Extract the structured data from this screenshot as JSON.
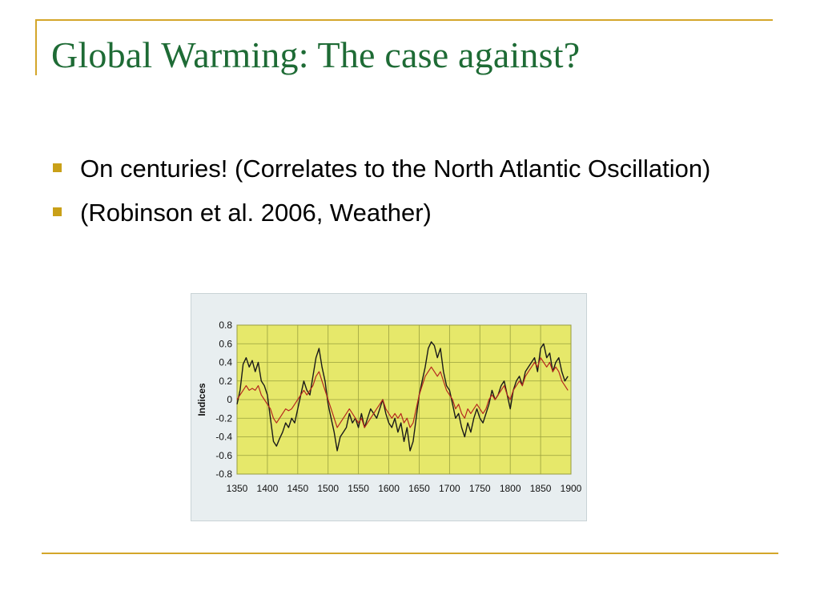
{
  "slide": {
    "title": "Global Warming: The case against?",
    "bullets": [
      "On centuries! (Correlates to the North Atlantic Oscillation)",
      "(Robinson et al. 2006, Weather)"
    ]
  },
  "colors": {
    "title": "#1e6b35",
    "frame": "#d4a62a",
    "bullet_marker": "#c9a018",
    "plot_background": "#e6e86a",
    "series_black": "#1a1a1a",
    "series_red": "#b5281f"
  },
  "chart_data": {
    "type": "line",
    "title": "",
    "xlabel": "",
    "ylabel": "Indices",
    "xlim": [
      1350,
      1900
    ],
    "ylim": [
      -0.8,
      0.8
    ],
    "xticks": [
      1350,
      1400,
      1450,
      1500,
      1550,
      1600,
      1650,
      1700,
      1750,
      1800,
      1850,
      1900
    ],
    "yticks": [
      0.8,
      0.6,
      0.4,
      0.2,
      0,
      -0.2,
      -0.4,
      -0.6,
      -0.8
    ],
    "ytick_labels": [
      "0.8",
      "0.6",
      "0.4",
      "0.2",
      "0",
      "-0.2",
      "-0.4",
      "-0.6",
      "-0.8"
    ],
    "grid": true,
    "series": [
      {
        "color": "#1a1a1a",
        "x": [
          1350,
          1355,
          1360,
          1365,
          1370,
          1375,
          1380,
          1385,
          1390,
          1395,
          1400,
          1405,
          1410,
          1415,
          1420,
          1425,
          1430,
          1435,
          1440,
          1445,
          1450,
          1455,
          1460,
          1465,
          1470,
          1475,
          1480,
          1485,
          1490,
          1495,
          1500,
          1505,
          1510,
          1515,
          1520,
          1525,
          1530,
          1535,
          1540,
          1545,
          1550,
          1555,
          1560,
          1565,
          1570,
          1575,
          1580,
          1585,
          1590,
          1595,
          1600,
          1605,
          1610,
          1615,
          1620,
          1625,
          1630,
          1635,
          1640,
          1645,
          1650,
          1655,
          1660,
          1665,
          1670,
          1675,
          1680,
          1685,
          1690,
          1695,
          1700,
          1705,
          1710,
          1715,
          1720,
          1725,
          1730,
          1735,
          1740,
          1745,
          1750,
          1755,
          1760,
          1765,
          1770,
          1775,
          1780,
          1785,
          1790,
          1795,
          1800,
          1805,
          1810,
          1815,
          1820,
          1825,
          1830,
          1835,
          1840,
          1845,
          1850,
          1855,
          1860,
          1865,
          1870,
          1875,
          1880,
          1885,
          1890,
          1895
        ],
        "y": [
          -0.05,
          0.1,
          0.38,
          0.45,
          0.35,
          0.42,
          0.3,
          0.4,
          0.2,
          0.15,
          0.05,
          -0.2,
          -0.45,
          -0.5,
          -0.42,
          -0.35,
          -0.25,
          -0.3,
          -0.2,
          -0.25,
          -0.1,
          0.05,
          0.2,
          0.1,
          0.05,
          0.25,
          0.45,
          0.55,
          0.35,
          0.2,
          -0.05,
          -0.2,
          -0.35,
          -0.55,
          -0.4,
          -0.35,
          -0.3,
          -0.15,
          -0.25,
          -0.2,
          -0.3,
          -0.15,
          -0.3,
          -0.2,
          -0.1,
          -0.15,
          -0.2,
          -0.1,
          0.0,
          -0.15,
          -0.25,
          -0.3,
          -0.2,
          -0.35,
          -0.25,
          -0.45,
          -0.3,
          -0.55,
          -0.45,
          -0.2,
          0.05,
          0.2,
          0.35,
          0.55,
          0.62,
          0.58,
          0.45,
          0.55,
          0.3,
          0.15,
          0.1,
          -0.05,
          -0.2,
          -0.15,
          -0.3,
          -0.4,
          -0.25,
          -0.35,
          -0.2,
          -0.1,
          -0.2,
          -0.25,
          -0.15,
          -0.05,
          0.1,
          0.0,
          0.05,
          0.15,
          0.2,
          0.05,
          -0.1,
          0.1,
          0.2,
          0.25,
          0.15,
          0.3,
          0.35,
          0.4,
          0.45,
          0.3,
          0.55,
          0.6,
          0.45,
          0.5,
          0.3,
          0.4,
          0.45,
          0.3,
          0.2,
          0.25
        ]
      },
      {
        "color": "#b5281f",
        "x": [
          1350,
          1355,
          1360,
          1365,
          1370,
          1375,
          1380,
          1385,
          1390,
          1395,
          1400,
          1405,
          1410,
          1415,
          1420,
          1425,
          1430,
          1435,
          1440,
          1445,
          1450,
          1455,
          1460,
          1465,
          1470,
          1475,
          1480,
          1485,
          1490,
          1495,
          1500,
          1505,
          1510,
          1515,
          1520,
          1525,
          1530,
          1535,
          1540,
          1545,
          1550,
          1555,
          1560,
          1565,
          1570,
          1575,
          1580,
          1585,
          1590,
          1595,
          1600,
          1605,
          1610,
          1615,
          1620,
          1625,
          1630,
          1635,
          1640,
          1645,
          1650,
          1655,
          1660,
          1665,
          1670,
          1675,
          1680,
          1685,
          1690,
          1695,
          1700,
          1705,
          1710,
          1715,
          1720,
          1725,
          1730,
          1735,
          1740,
          1745,
          1750,
          1755,
          1760,
          1765,
          1770,
          1775,
          1780,
          1785,
          1790,
          1795,
          1800,
          1805,
          1810,
          1815,
          1820,
          1825,
          1830,
          1835,
          1840,
          1845,
          1850,
          1855,
          1860,
          1865,
          1870,
          1875,
          1880,
          1885,
          1890,
          1895
        ],
        "y": [
          0.0,
          0.05,
          0.1,
          0.15,
          0.1,
          0.12,
          0.1,
          0.15,
          0.05,
          0.0,
          -0.05,
          -0.1,
          -0.2,
          -0.25,
          -0.2,
          -0.15,
          -0.1,
          -0.12,
          -0.1,
          -0.05,
          0.0,
          0.05,
          0.1,
          0.05,
          0.1,
          0.15,
          0.25,
          0.3,
          0.2,
          0.1,
          0.0,
          -0.1,
          -0.2,
          -0.3,
          -0.25,
          -0.2,
          -0.15,
          -0.1,
          -0.15,
          -0.2,
          -0.25,
          -0.2,
          -0.3,
          -0.25,
          -0.2,
          -0.15,
          -0.1,
          -0.05,
          0.0,
          -0.1,
          -0.15,
          -0.2,
          -0.15,
          -0.2,
          -0.15,
          -0.25,
          -0.2,
          -0.3,
          -0.25,
          -0.1,
          0.05,
          0.15,
          0.25,
          0.3,
          0.35,
          0.3,
          0.25,
          0.3,
          0.2,
          0.1,
          0.05,
          0.0,
          -0.1,
          -0.05,
          -0.15,
          -0.2,
          -0.1,
          -0.15,
          -0.1,
          -0.05,
          -0.1,
          -0.15,
          -0.1,
          0.0,
          0.05,
          0.0,
          0.05,
          0.1,
          0.15,
          0.05,
          0.0,
          0.1,
          0.15,
          0.2,
          0.15,
          0.25,
          0.3,
          0.35,
          0.4,
          0.35,
          0.45,
          0.4,
          0.35,
          0.4,
          0.3,
          0.35,
          0.3,
          0.2,
          0.15,
          0.1
        ]
      }
    ]
  }
}
